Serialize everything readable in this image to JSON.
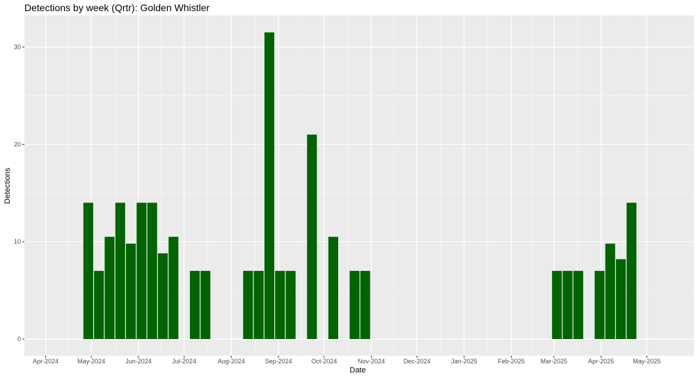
{
  "chart_data": {
    "type": "bar",
    "title": "Detections by week (Qrtr): Golden Whistler",
    "xlabel": "Date",
    "ylabel": "Detections",
    "ylim": [
      0,
      33
    ],
    "x_ticks": [
      "Apr-2024",
      "May-2024",
      "Jun-2024",
      "Jul-2024",
      "Aug-2024",
      "Sep-2024",
      "Oct-2024",
      "Nov-2024",
      "Dec-2024",
      "Jan-2025",
      "Feb-2025",
      "Mar-2025",
      "Apr-2025",
      "May-2025"
    ],
    "y_ticks": [
      0,
      10,
      20,
      30
    ],
    "grid": true,
    "bar_color": "#006400",
    "panel_color": "#ebebeb",
    "series": [
      {
        "x": [
          "2024-04-29",
          "2024-05-06",
          "2024-05-13",
          "2024-05-20",
          "2024-05-27",
          "2024-06-03",
          "2024-06-10",
          "2024-06-17",
          "2024-06-24",
          "2024-07-08",
          "2024-07-15",
          "2024-08-12",
          "2024-08-19",
          "2024-08-26",
          "2024-09-02",
          "2024-09-09",
          "2024-09-23",
          "2024-10-07",
          "2024-10-21",
          "2024-10-28",
          "2025-03-03",
          "2025-03-10",
          "2025-03-17",
          "2025-03-31",
          "2025-04-07",
          "2025-04-14",
          "2025-04-21"
        ],
        "values": [
          14,
          7,
          10.5,
          14,
          9.8,
          14,
          14,
          8.8,
          10.5,
          7,
          7,
          7,
          7,
          31.5,
          7,
          7,
          21,
          10.5,
          7,
          7,
          7,
          7,
          7,
          7,
          9.8,
          8.2,
          14
        ]
      }
    ]
  }
}
